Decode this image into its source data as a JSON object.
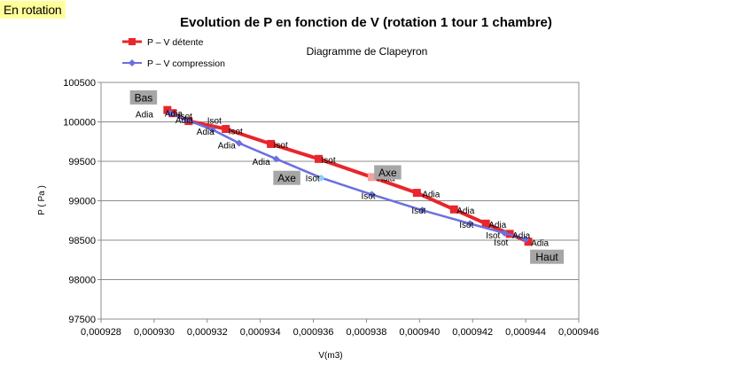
{
  "mode_tag": "En rotation",
  "colors": {
    "detente": "#e8262b",
    "compression": "#6b6fe0",
    "label_box": "#a6a6a6",
    "grid": "#8c8c8c",
    "highlight_detente": "#f5a0a0",
    "highlight_compression": "#8fd0f0"
  },
  "chart_data": {
    "type": "line",
    "title": "Evolution de P en fonction de V (rotation 1 tour 1 chambre)",
    "subtitle": "Diagramme de Clapeyron",
    "xlabel": "V(m3)",
    "ylabel": "P ( Pa )",
    "xlim": [
      0.000928,
      0.000946
    ],
    "ylim": [
      97500,
      100500
    ],
    "xticks": [
      "0,000928",
      "0,000930",
      "0,000932",
      "0,000934",
      "0,000936",
      "0,000938",
      "0,000940",
      "0,000942",
      "0,000944",
      "0,000946"
    ],
    "yticks": [
      "97500",
      "98000",
      "98500",
      "99000",
      "99500",
      "100000",
      "100500"
    ],
    "grid": "horizontal",
    "legend_position": "top-left",
    "series": [
      {
        "name": "P – V détente",
        "marker": "square",
        "x": [
          0.0009305,
          0.0009307,
          0.0009313,
          0.0009327,
          0.0009344,
          0.0009362,
          0.0009382,
          0.0009399,
          0.0009413,
          0.0009425,
          0.0009434,
          0.0009441
        ],
        "y": [
          100150,
          100110,
          100010,
          99910,
          99720,
          99530,
          99300,
          99100,
          98890,
          98710,
          98580,
          98480
        ]
      },
      {
        "name": "P – V compression",
        "marker": "diamond",
        "x": [
          0.0009306,
          0.0009312,
          0.0009322,
          0.0009332,
          0.0009346,
          0.0009363,
          0.0009382,
          0.0009401,
          0.0009419,
          0.0009432,
          0.000944
        ],
        "y": [
          100110,
          100030,
          99900,
          99730,
          99530,
          99290,
          99080,
          98880,
          98710,
          98590,
          98510
        ]
      }
    ],
    "annotations": [
      {
        "text": "Adia",
        "x": 0.0009304,
        "y": 100115
      },
      {
        "text": "Adia",
        "x": 0.0009293,
        "y": 100100
      },
      {
        "text": "Isot",
        "x": 0.0009309,
        "y": 100080
      },
      {
        "text": "Adia",
        "x": 0.0009308,
        "y": 100030
      },
      {
        "text": "Isot",
        "x": 0.000932,
        "y": 100025
      },
      {
        "text": "Adia",
        "x": 0.0009316,
        "y": 99880
      },
      {
        "text": "Isot",
        "x": 0.0009328,
        "y": 99890
      },
      {
        "text": "Adia",
        "x": 0.0009324,
        "y": 99710
      },
      {
        "text": "Isot",
        "x": 0.0009345,
        "y": 99715
      },
      {
        "text": "Adia",
        "x": 0.0009337,
        "y": 99500
      },
      {
        "text": "Isot",
        "x": 0.0009363,
        "y": 99520
      },
      {
        "text": "Isot",
        "x": 0.0009357,
        "y": 99290
      },
      {
        "text": "Adia",
        "x": 0.0009384,
        "y": 99290
      },
      {
        "text": "Isot",
        "x": 0.0009378,
        "y": 99070
      },
      {
        "text": "Adia",
        "x": 0.0009401,
        "y": 99090
      },
      {
        "text": "Isot",
        "x": 0.0009397,
        "y": 98880
      },
      {
        "text": "Adia",
        "x": 0.0009414,
        "y": 98880
      },
      {
        "text": "Isot",
        "x": 0.0009415,
        "y": 98700
      },
      {
        "text": "Adia",
        "x": 0.0009426,
        "y": 98700
      },
      {
        "text": "Isot",
        "x": 0.0009425,
        "y": 98570
      },
      {
        "text": "Adia",
        "x": 0.0009435,
        "y": 98570
      },
      {
        "text": "Isot",
        "x": 0.0009428,
        "y": 98480
      },
      {
        "text": "Adia",
        "x": 0.0009442,
        "y": 98470
      }
    ],
    "labels": [
      {
        "text": "Bas",
        "x": 0.0009296,
        "y": 100310
      },
      {
        "text": "Axe",
        "x": 0.000935,
        "y": 99290
      },
      {
        "text": "Axe",
        "x": 0.0009388,
        "y": 99360
      },
      {
        "text": "Haut",
        "x": 0.0009448,
        "y": 98290
      }
    ]
  }
}
